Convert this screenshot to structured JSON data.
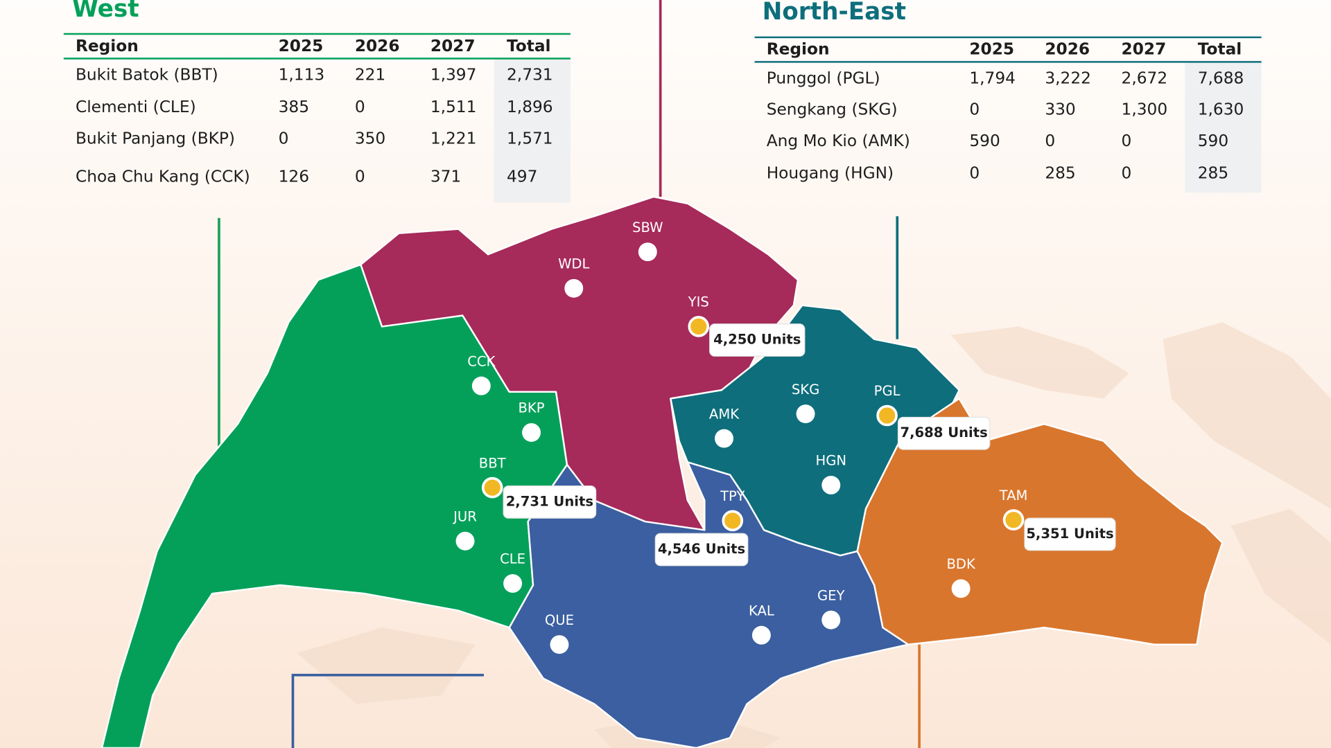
{
  "west": {
    "title": "West",
    "columns": [
      "Region",
      "2025",
      "2026",
      "2027",
      "Total"
    ],
    "rows": [
      [
        "Bukit Batok (BBT)",
        "1,113",
        "221",
        "1,397",
        "2,731"
      ],
      [
        "Clementi (CLE)",
        "385",
        "0",
        "1,511",
        "1,896"
      ],
      [
        "Bukit Panjang (BKP)",
        "0",
        "350",
        "1,221",
        "1,571"
      ],
      [
        "Choa Chu Kang (CCK)",
        "126",
        "0",
        "371",
        "497"
      ]
    ]
  },
  "north_east": {
    "title": "North-East",
    "columns": [
      "Region",
      "2025",
      "2026",
      "2027",
      "Total"
    ],
    "rows": [
      [
        "Punggol (PGL)",
        "1,794",
        "3,222",
        "2,672",
        "7,688"
      ],
      [
        "Sengkang (SKG)",
        "0",
        "330",
        "1,300",
        "1,630"
      ],
      [
        "Ang Mo Kio (AMK)",
        "590",
        "0",
        "0",
        "590"
      ],
      [
        "Hougang (HGN)",
        "0",
        "285",
        "0",
        "285"
      ]
    ]
  },
  "map": {
    "towns": [
      "SBW",
      "WDL",
      "YIS",
      "CCK",
      "BKP",
      "BBT",
      "JUR",
      "CLE",
      "QUE",
      "AMK",
      "SKG",
      "PGL",
      "HGN",
      "TPY",
      "KAL",
      "GEY",
      "TAM",
      "BDK"
    ],
    "callouts": [
      "4,250 Units",
      "7,688 Units",
      "2,731 Units",
      "4,546 Units",
      "5,351 Units"
    ]
  }
}
